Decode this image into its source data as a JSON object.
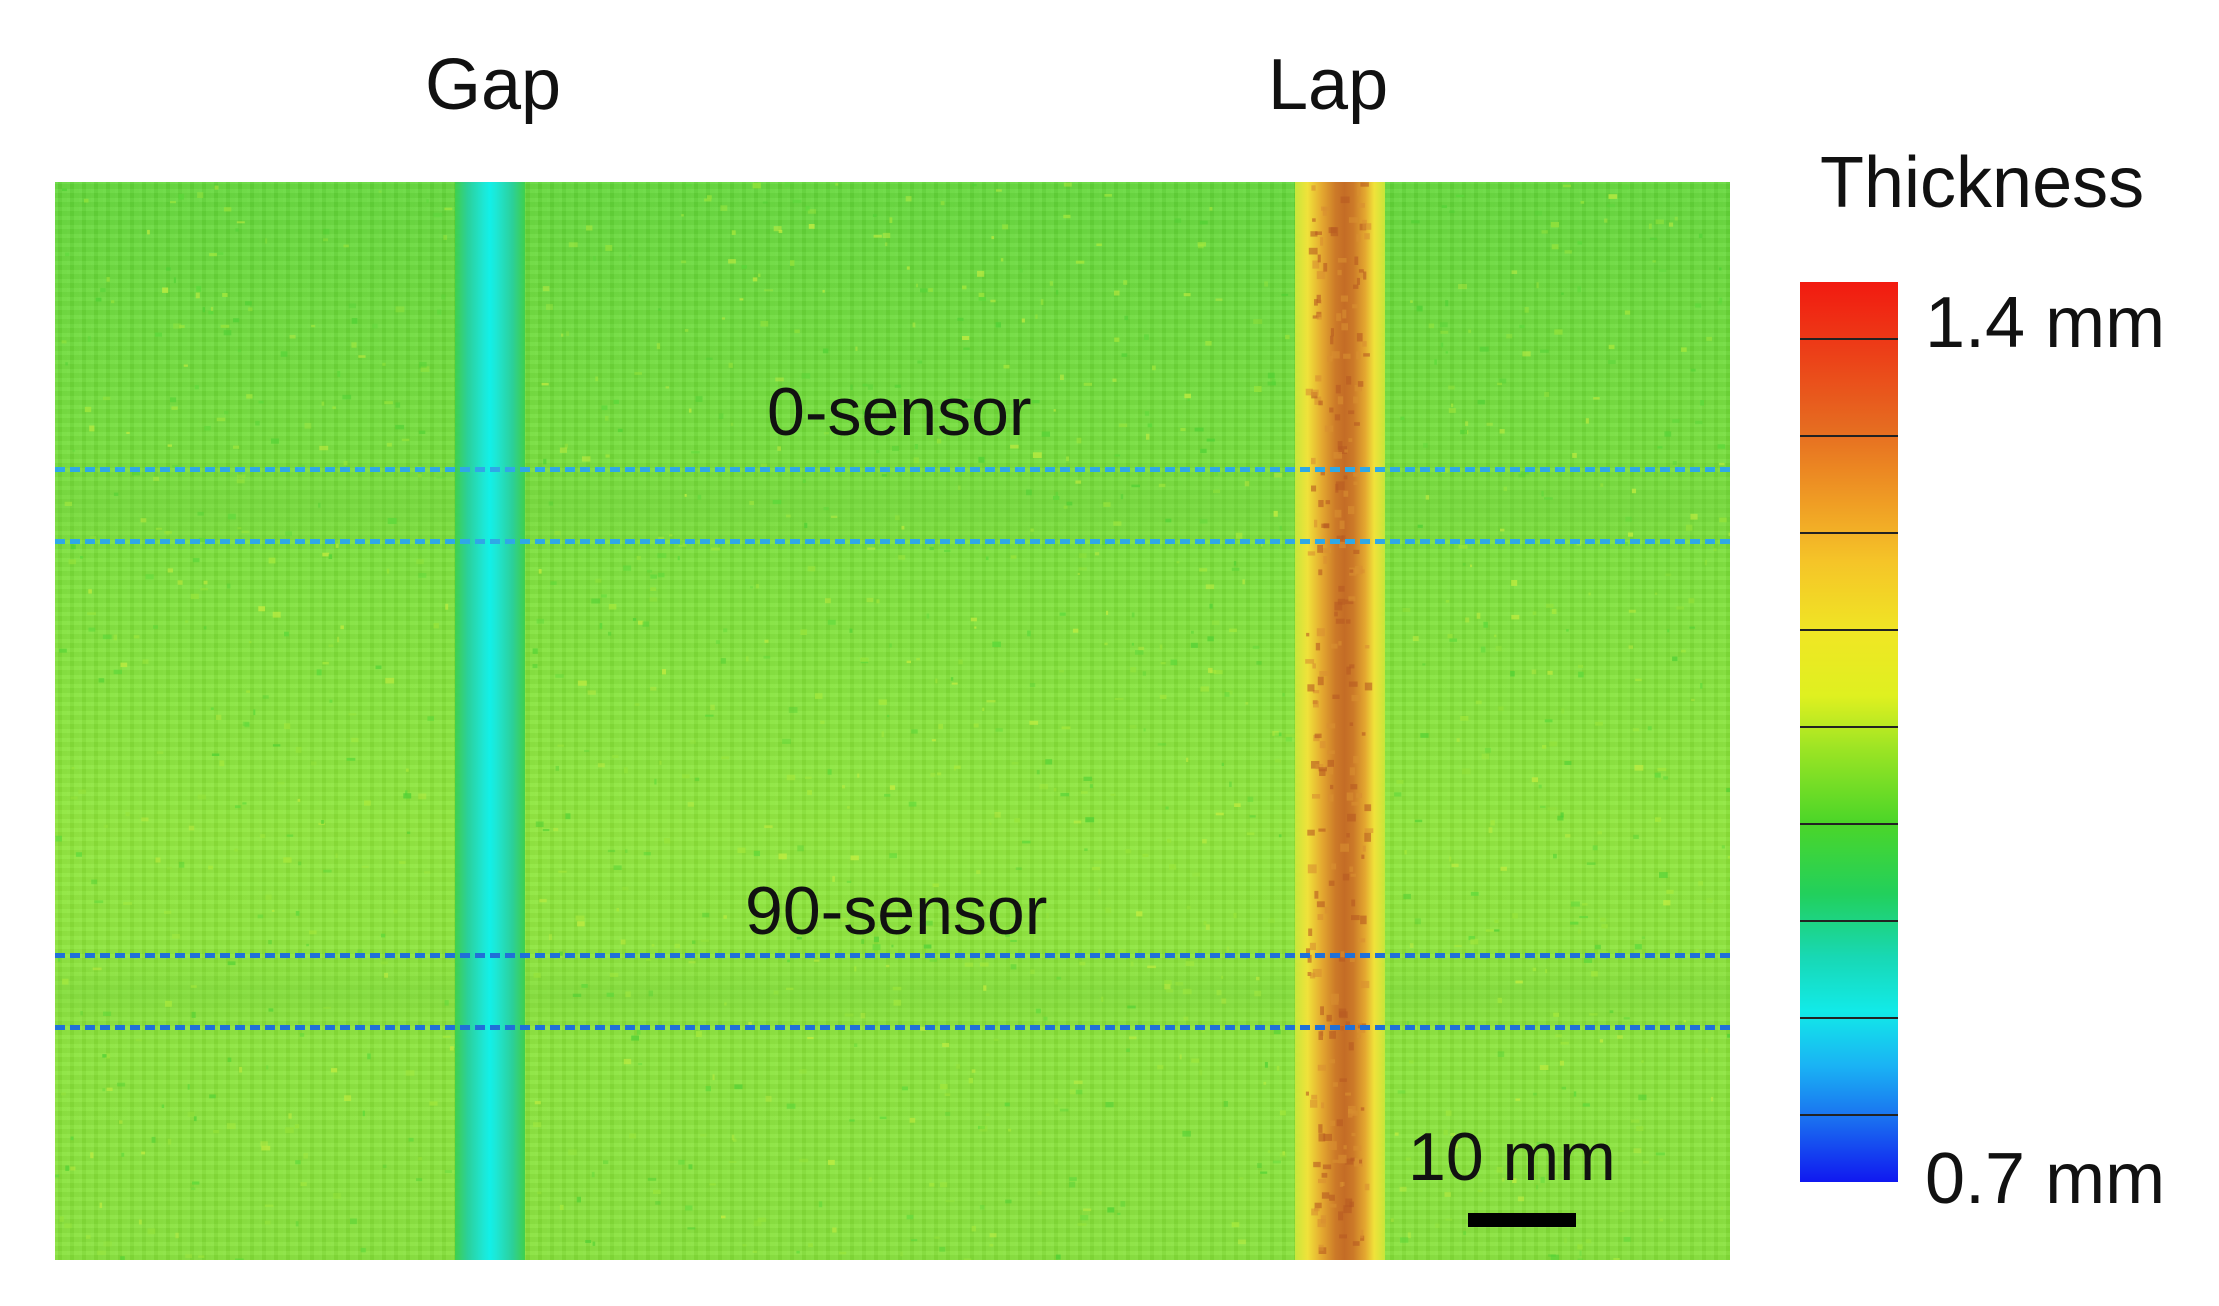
{
  "titles": {
    "gap": "Gap",
    "lap": "Lap"
  },
  "sensors": {
    "sensor0": "0-sensor",
    "sensor90": "90-sensor"
  },
  "scale_bar": {
    "label": "10 mm"
  },
  "colorbar": {
    "title": "Thickness",
    "max_label": "1.4 mm",
    "min_label": "0.7 mm",
    "colors": [
      "#f21a10",
      "#e66a20",
      "#f5c428",
      "#dff020",
      "#4cd628",
      "#22d05c",
      "#12eae8",
      "#1a70f0",
      "#1018f0"
    ]
  },
  "colors": {
    "background_green": "#86e23a",
    "gap_band": "#12f0e8",
    "lap_band": "#c46c26",
    "sensor_line_top": "#2fa8e6",
    "sensor_line_bottom": "#2070d8"
  }
}
